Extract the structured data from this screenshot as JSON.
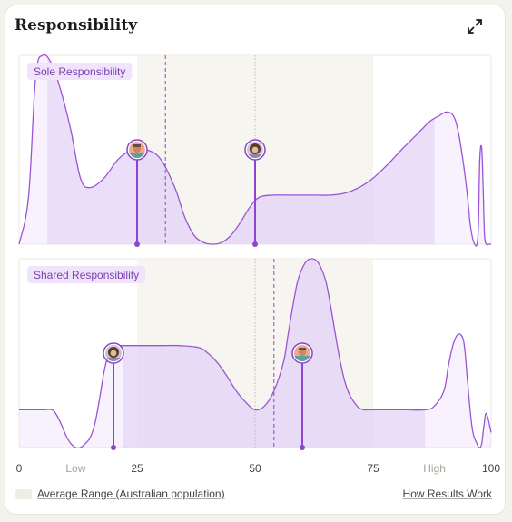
{
  "header": {
    "title": "Responsibility",
    "expand_icon": "expand-arrows-icon"
  },
  "legend": {
    "average_range_label": "Average Range (Australian population)"
  },
  "footer": {
    "how_results_work": "How Results Work"
  },
  "colors": {
    "curve": "#9b55d4",
    "fill": "#e4d2f7",
    "pin": "#8e44cc",
    "band": "#f7f5ef",
    "label_bg": "#efe4fa",
    "label_text": "#7b3fb2"
  },
  "chart_data": {
    "type": "area",
    "xlim": [
      0,
      100
    ],
    "ylim": [
      0,
      1
    ],
    "average_range": [
      25,
      75
    ],
    "tick_labels": [
      {
        "x": 0,
        "label": "0",
        "muted": false
      },
      {
        "x": 12,
        "label": "Low",
        "muted": true
      },
      {
        "x": 25,
        "label": "25",
        "muted": false
      },
      {
        "x": 50,
        "label": "50",
        "muted": false
      },
      {
        "x": 75,
        "label": "75",
        "muted": false
      },
      {
        "x": 88,
        "label": "High",
        "muted": true
      },
      {
        "x": 100,
        "label": "100",
        "muted": false
      }
    ],
    "panels": [
      {
        "name": "Sole Responsibility",
        "series_x": [
          0,
          2,
          3.5,
          5,
          7,
          9,
          11,
          13,
          15,
          18,
          21,
          24,
          27,
          30,
          33,
          35,
          37,
          39,
          41,
          43,
          45,
          47,
          49,
          51,
          54,
          57,
          60,
          63,
          66,
          69,
          72,
          75,
          78,
          81,
          83,
          85,
          87,
          89,
          90.5,
          92,
          93,
          94,
          95,
          95.5,
          96,
          96.5,
          97,
          97.3,
          97.6,
          98,
          98.3,
          98.6,
          99,
          99.5,
          100
        ],
        "series_y": [
          0,
          0.25,
          0.88,
          1.0,
          0.95,
          0.8,
          0.6,
          0.35,
          0.3,
          0.35,
          0.45,
          0.5,
          0.5,
          0.45,
          0.3,
          0.15,
          0.05,
          0.01,
          0,
          0.01,
          0.05,
          0.12,
          0.2,
          0.25,
          0.26,
          0.26,
          0.26,
          0.26,
          0.26,
          0.27,
          0.3,
          0.35,
          0.42,
          0.5,
          0.55,
          0.6,
          0.65,
          0.68,
          0.7,
          0.68,
          0.6,
          0.45,
          0.25,
          0.12,
          0.04,
          0,
          0,
          0.1,
          0.45,
          0.51,
          0.3,
          0.05,
          0,
          0,
          0
        ],
        "highlight_range": [
          6,
          88
        ],
        "mean_line": 31,
        "reference_line": 50,
        "markers": [
          {
            "x": 25,
            "avatar": "avatar-male"
          },
          {
            "x": 50,
            "avatar": "avatar-female"
          }
        ]
      },
      {
        "name": "Shared Responsibility",
        "series_x": [
          0,
          2,
          5,
          7,
          8,
          9,
          10,
          11,
          12,
          13,
          14,
          15,
          16,
          17,
          18,
          19,
          20,
          21,
          22,
          24,
          26,
          30,
          34,
          38,
          40,
          42,
          44,
          46,
          48,
          50,
          52,
          54,
          56,
          57,
          58,
          59,
          60,
          61,
          62,
          63,
          64,
          65,
          66,
          67,
          68,
          69,
          70,
          71,
          72,
          73,
          74,
          75,
          78,
          82,
          86,
          88,
          90,
          91,
          92,
          93,
          94,
          94.5,
          95,
          96,
          97,
          97.5,
          98,
          98.5,
          99,
          100
        ],
        "series_y": [
          0.2,
          0.2,
          0.2,
          0.2,
          0.17,
          0.12,
          0.06,
          0.02,
          0,
          0,
          0.02,
          0.05,
          0.12,
          0.25,
          0.4,
          0.5,
          0.53,
          0.54,
          0.54,
          0.54,
          0.54,
          0.54,
          0.54,
          0.53,
          0.5,
          0.45,
          0.38,
          0.3,
          0.24,
          0.2,
          0.22,
          0.3,
          0.45,
          0.6,
          0.75,
          0.88,
          0.95,
          0.99,
          1.0,
          0.99,
          0.95,
          0.88,
          0.75,
          0.6,
          0.46,
          0.35,
          0.28,
          0.24,
          0.21,
          0.2,
          0.2,
          0.2,
          0.2,
          0.2,
          0.2,
          0.22,
          0.3,
          0.44,
          0.55,
          0.6,
          0.58,
          0.5,
          0.35,
          0.1,
          0.02,
          0,
          0.02,
          0.12,
          0.18,
          0.08
        ],
        "highlight_range": [
          22,
          86
        ],
        "mean_line": 54,
        "reference_line": 50,
        "markers": [
          {
            "x": 20,
            "avatar": "avatar-female"
          },
          {
            "x": 60,
            "avatar": "avatar-male"
          }
        ]
      }
    ]
  }
}
